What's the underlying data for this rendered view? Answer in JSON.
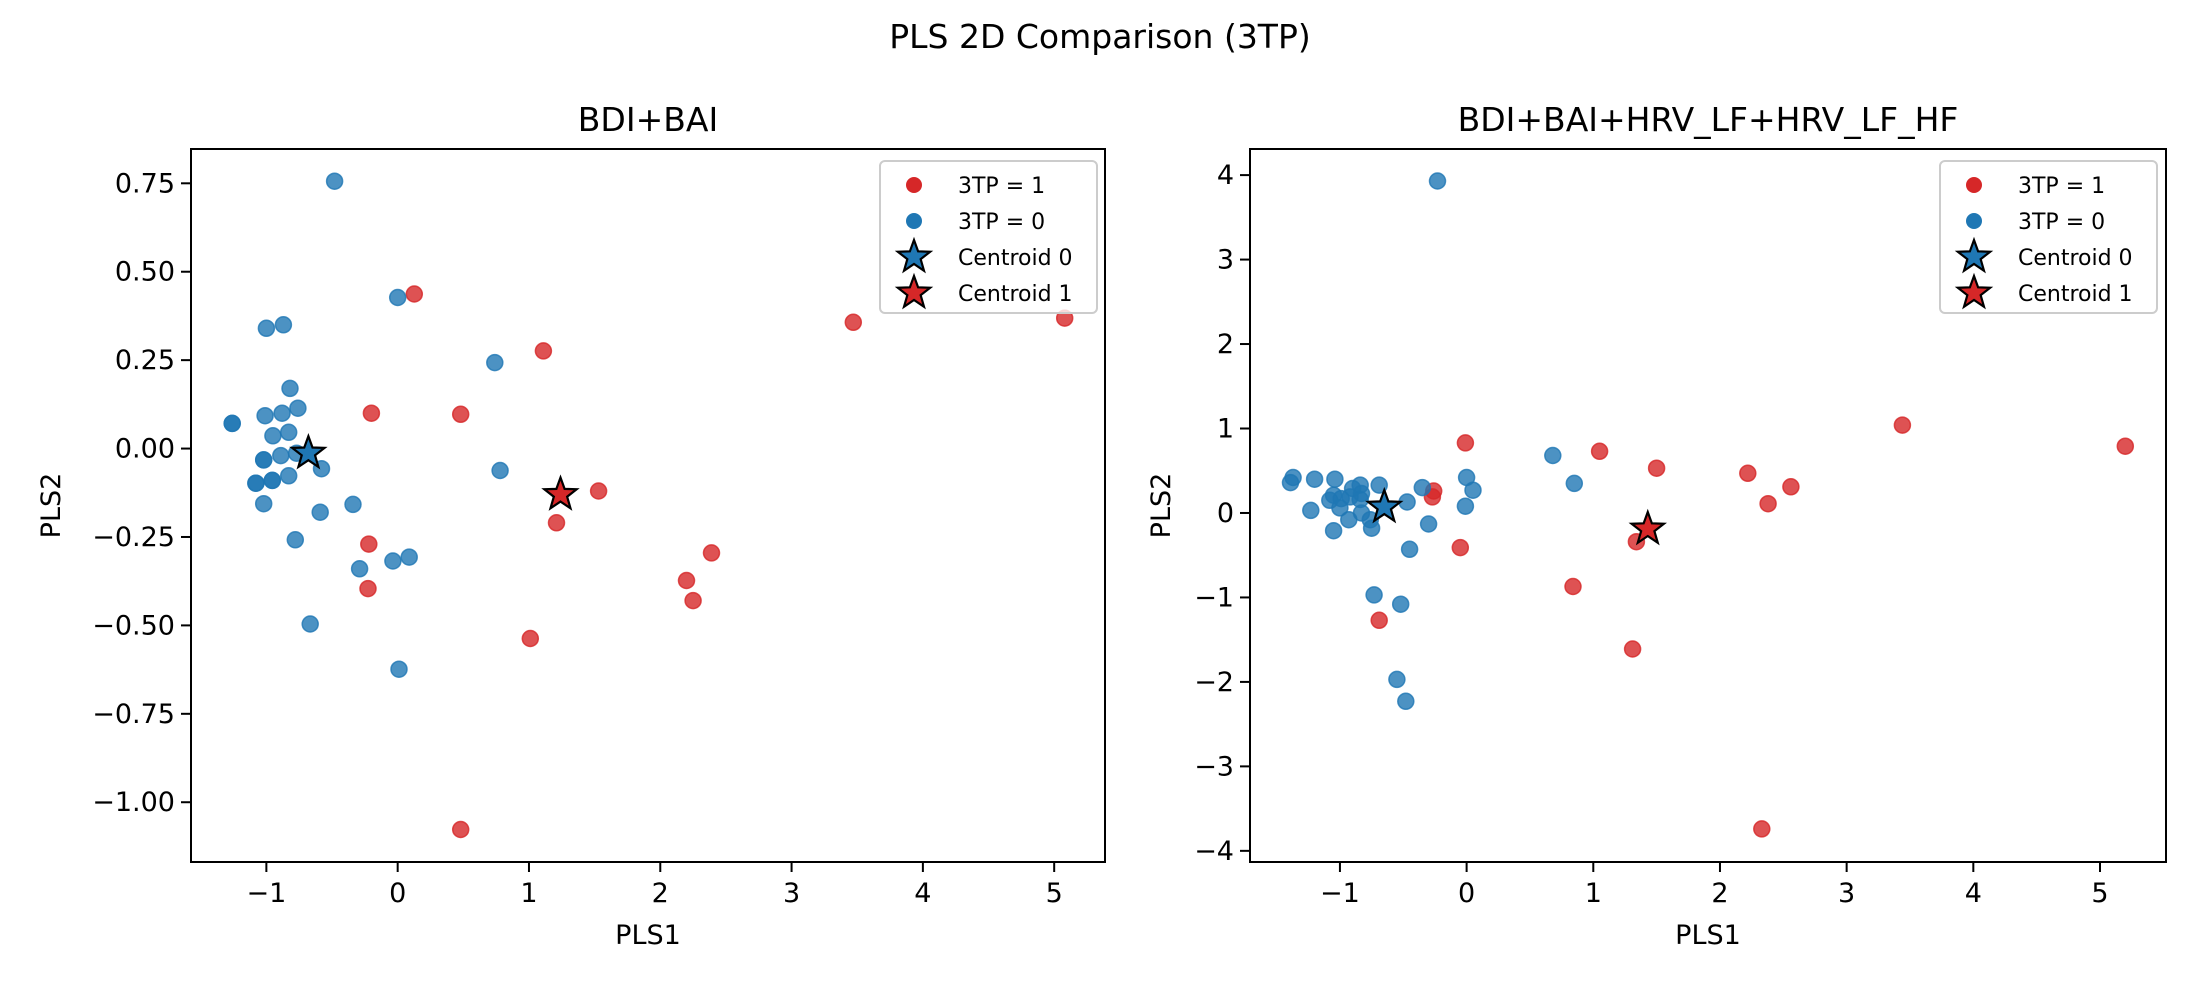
{
  "figure": {
    "suptitle": "PLS 2D Comparison (3TP)"
  },
  "colors": {
    "class_1": "#d62728",
    "class_0": "#1f77b4",
    "centroid_edge": "#000000",
    "legend_border": "#cccccc"
  },
  "chart_data": [
    {
      "type": "scatter",
      "title": "BDI+BAI",
      "xlabel": "PLS1",
      "ylabel": "PLS2",
      "xlim": [
        -1.574,
        5.387
      ],
      "ylim": [
        -1.169,
        0.847
      ],
      "xticks": [
        -1,
        0,
        1,
        2,
        3,
        4,
        5
      ],
      "xtick_labels": [
        "−1",
        "0",
        "1",
        "2",
        "3",
        "4",
        "5"
      ],
      "yticks": [
        0.75,
        0.5,
        0.25,
        0.0,
        -0.25,
        -0.5,
        -0.75,
        -1.0
      ],
      "ytick_labels": [
        "0.75",
        "0.50",
        "0.25",
        "0.00",
        "−0.25",
        "−0.50",
        "−0.75",
        "−1.00"
      ],
      "grid": false,
      "legend_position": "top-right",
      "legend": [
        "3TP = 1",
        "3TP = 0",
        "Centroid 0",
        "Centroid 1"
      ],
      "series": [
        {
          "name": "3TP = 1",
          "marker": "circle",
          "points": [
            [
              0.127,
              0.437
            ],
            [
              1.11,
              0.276
            ],
            [
              -0.2,
              0.1
            ],
            [
              0.48,
              0.097
            ],
            [
              1.53,
              -0.12
            ],
            [
              1.21,
              -0.21
            ],
            [
              -0.22,
              -0.27
            ],
            [
              -0.226,
              -0.396
            ],
            [
              2.39,
              -0.295
            ],
            [
              2.2,
              -0.373
            ],
            [
              2.25,
              -0.43
            ],
            [
              1.01,
              -0.537
            ],
            [
              0.48,
              -1.077
            ],
            [
              3.47,
              0.357
            ],
            [
              5.08,
              0.369
            ]
          ]
        },
        {
          "name": "3TP = 0",
          "marker": "circle",
          "points": [
            [
              -0.48,
              0.756
            ],
            [
              0.0,
              0.427
            ],
            [
              -1.0,
              0.34
            ],
            [
              -0.87,
              0.35
            ],
            [
              0.74,
              0.243
            ],
            [
              -0.82,
              0.17
            ],
            [
              -1.01,
              0.093
            ],
            [
              -0.88,
              0.1
            ],
            [
              -0.76,
              0.114
            ],
            [
              -1.26,
              0.071
            ],
            [
              -1.26,
              0.071
            ],
            [
              -0.95,
              0.036
            ],
            [
              -0.83,
              0.046
            ],
            [
              -1.02,
              -0.032
            ],
            [
              -1.02,
              -0.032
            ],
            [
              -0.89,
              -0.02
            ],
            [
              -0.77,
              -0.013
            ],
            [
              -0.58,
              -0.057
            ],
            [
              0.78,
              -0.062
            ],
            [
              -1.08,
              -0.098
            ],
            [
              -1.08,
              -0.098
            ],
            [
              -0.955,
              -0.09
            ],
            [
              -0.955,
              -0.09
            ],
            [
              -0.83,
              -0.077
            ],
            [
              -1.02,
              -0.156
            ],
            [
              -0.59,
              -0.18
            ],
            [
              -0.34,
              -0.158
            ],
            [
              -0.78,
              -0.258
            ],
            [
              -0.29,
              -0.34
            ],
            [
              -0.036,
              -0.318
            ],
            [
              0.088,
              -0.307
            ],
            [
              -0.666,
              -0.496
            ],
            [
              0.01,
              -0.624
            ]
          ]
        },
        {
          "name": "Centroid 0",
          "marker": "star",
          "points": [
            [
              -0.68,
              -0.013
            ]
          ]
        },
        {
          "name": "Centroid 1",
          "marker": "star",
          "points": [
            [
              1.24,
              -0.13
            ]
          ]
        }
      ]
    },
    {
      "type": "scatter",
      "title": "BDI+BAI+HRV_LF+HRV_LF_HF",
      "xlabel": "PLS1",
      "ylabel": "PLS2",
      "xlim": [
        -1.71,
        5.521
      ],
      "ylim": [
        -4.132,
        4.309
      ],
      "xticks": [
        -1,
        0,
        1,
        2,
        3,
        4,
        5
      ],
      "xtick_labels": [
        "−1",
        "0",
        "1",
        "2",
        "3",
        "4",
        "5"
      ],
      "yticks": [
        4,
        3,
        2,
        1,
        0,
        -1,
        -2,
        -3,
        -4
      ],
      "ytick_labels": [
        "4",
        "3",
        "2",
        "1",
        "0",
        "−1",
        "−2",
        "−3",
        "−4"
      ],
      "grid": false,
      "legend_position": "top-right",
      "legend": [
        "3TP = 1",
        "3TP = 0",
        "Centroid 0",
        "Centroid 1"
      ],
      "series": [
        {
          "name": "3TP = 1",
          "marker": "circle",
          "points": [
            [
              -0.01,
              0.83
            ],
            [
              -0.26,
              0.26
            ],
            [
              -0.27,
              0.19
            ],
            [
              -0.05,
              -0.41
            ],
            [
              -0.69,
              -1.27
            ],
            [
              1.05,
              0.73
            ],
            [
              1.5,
              0.53
            ],
            [
              1.34,
              -0.34
            ],
            [
              0.84,
              -0.87
            ],
            [
              1.31,
              -1.61
            ],
            [
              2.22,
              0.47
            ],
            [
              2.56,
              0.31
            ],
            [
              2.38,
              0.11
            ],
            [
              3.44,
              1.04
            ],
            [
              5.2,
              0.79
            ],
            [
              2.33,
              -3.74
            ]
          ]
        },
        {
          "name": "3TP = 0",
          "marker": "circle",
          "points": [
            [
              -0.23,
              3.93
            ],
            [
              -1.37,
              0.42
            ],
            [
              -1.39,
              0.36
            ],
            [
              -1.2,
              0.4
            ],
            [
              -1.04,
              0.4
            ],
            [
              -0.9,
              0.29
            ],
            [
              -0.84,
              0.33
            ],
            [
              -0.69,
              0.33
            ],
            [
              -1.05,
              0.21
            ],
            [
              -1.08,
              0.15
            ],
            [
              -0.99,
              0.17
            ],
            [
              -0.92,
              0.19
            ],
            [
              -0.83,
              0.23
            ],
            [
              -0.84,
              0.16
            ],
            [
              -1.0,
              0.06
            ],
            [
              -1.23,
              0.03
            ],
            [
              -0.83,
              0.0
            ],
            [
              -0.93,
              -0.08
            ],
            [
              -0.76,
              -0.08
            ],
            [
              -0.75,
              -0.18
            ],
            [
              -1.05,
              -0.21
            ],
            [
              -0.47,
              0.13
            ],
            [
              -0.35,
              0.3
            ],
            [
              0.0,
              0.42
            ],
            [
              0.05,
              0.27
            ],
            [
              -0.01,
              0.08
            ],
            [
              -0.3,
              -0.13
            ],
            [
              -0.45,
              -0.43
            ],
            [
              0.68,
              0.68
            ],
            [
              0.85,
              0.35
            ],
            [
              -0.73,
              -0.97
            ],
            [
              -0.52,
              -1.08
            ],
            [
              -0.55,
              -1.97
            ],
            [
              -0.48,
              -2.23
            ]
          ]
        },
        {
          "name": "Centroid 0",
          "marker": "star",
          "points": [
            [
              -0.65,
              0.07
            ]
          ]
        },
        {
          "name": "Centroid 1",
          "marker": "star",
          "points": [
            [
              1.43,
              -0.19
            ]
          ]
        }
      ]
    }
  ]
}
